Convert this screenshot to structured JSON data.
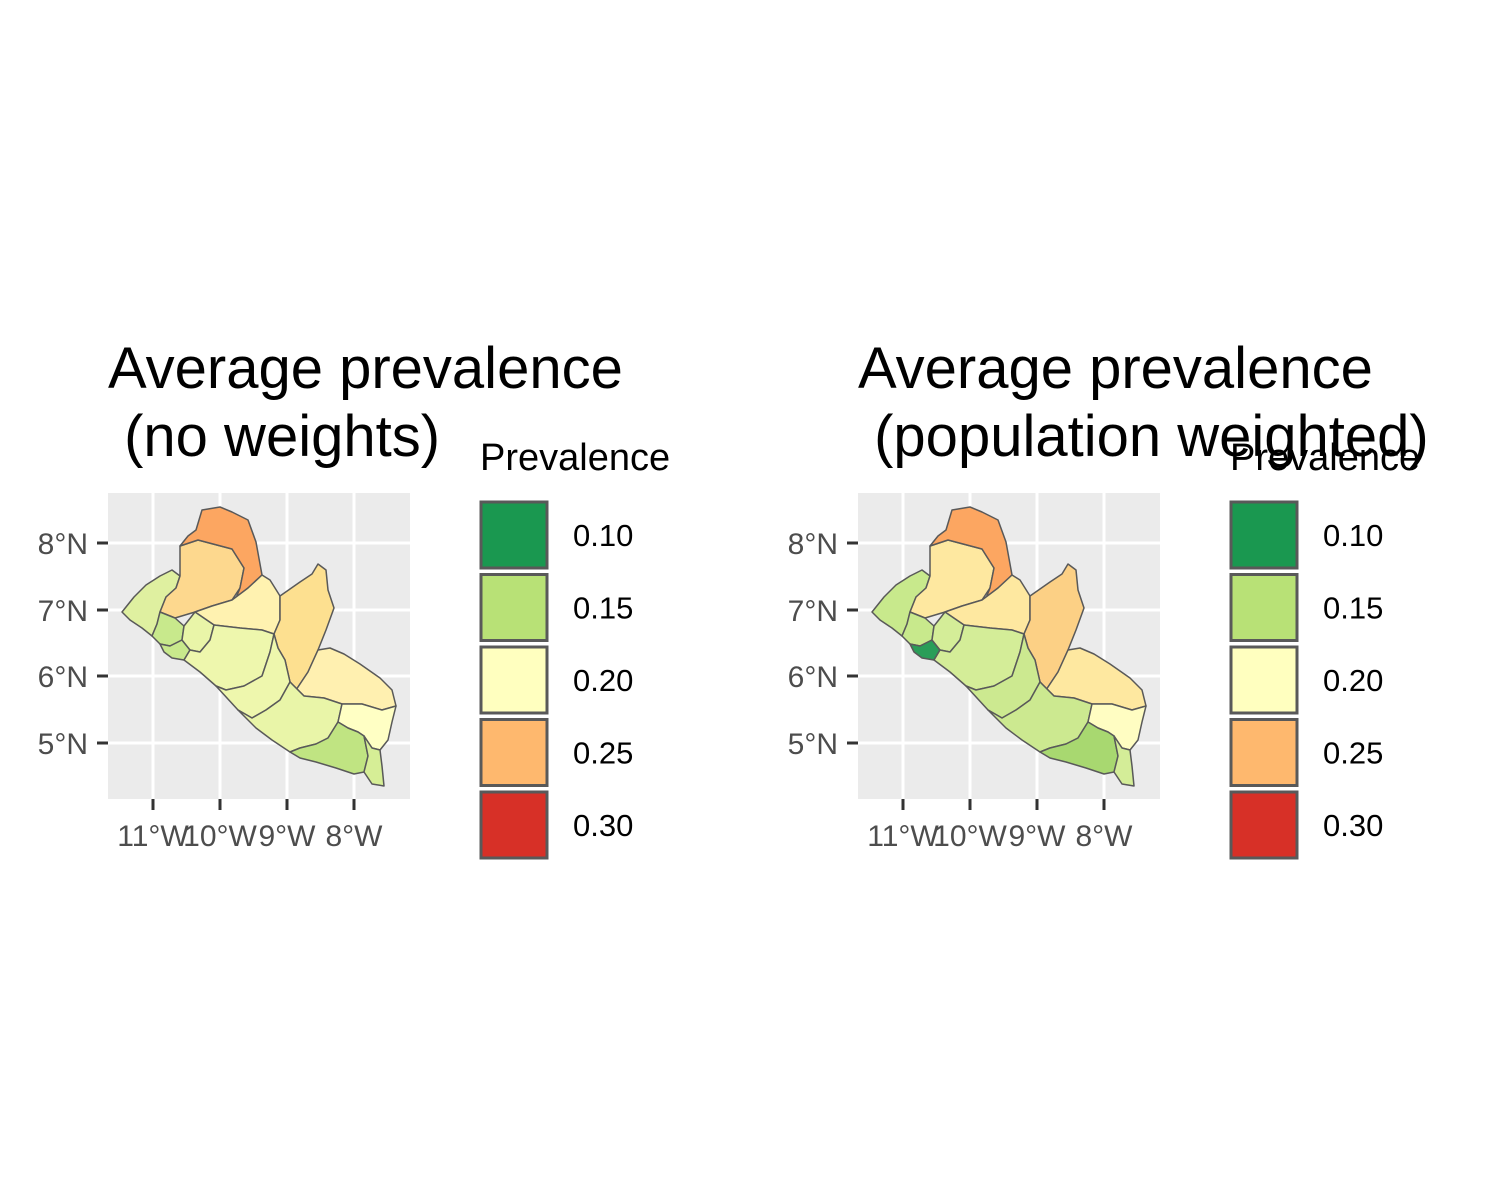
{
  "palette": {
    "panel_bg": "#ebebeb",
    "grid": "#ffffff",
    "border": "#595959",
    "tick": "#333333"
  },
  "legend_scale": [
    {
      "label": "0.10",
      "color": "#1a9850"
    },
    {
      "label": "0.15",
      "color": "#b8e176"
    },
    {
      "label": "0.20",
      "color": "#ffffbf"
    },
    {
      "label": "0.25",
      "color": "#feb86e"
    },
    {
      "label": "0.30",
      "color": "#d73027"
    }
  ],
  "panels": [
    {
      "title_line1": "Average prevalence",
      "title_line2": " (no weights)",
      "legend_title": "Prevalence",
      "lat_ticks": [
        "8°N",
        "7°N",
        "6°N",
        "5°N"
      ],
      "lon_ticks": [
        "11°W",
        "10°W",
        "9°W",
        "8°W"
      ],
      "regions": {
        "grand_cape_mount": {
          "value": 0.155,
          "color": "#dff0a0"
        },
        "gbarpolu": {
          "value": 0.225,
          "color": "#fdd88e"
        },
        "lofa": {
          "value": 0.255,
          "color": "#fca661"
        },
        "bong": {
          "value": 0.205,
          "color": "#fff2b0"
        },
        "nimba": {
          "value": 0.225,
          "color": "#fde090"
        },
        "bomi": {
          "value": 0.15,
          "color": "#c8e98c"
        },
        "montserrado": {
          "value": 0.15,
          "color": "#c8e98c"
        },
        "margibi": {
          "value": 0.17,
          "color": "#e9f5a8"
        },
        "grand_bassa": {
          "value": 0.175,
          "color": "#eef7ad"
        },
        "river_cess": {
          "value": 0.175,
          "color": "#eef7ad"
        },
        "grand_gedeh": {
          "value": 0.205,
          "color": "#fff0b0"
        },
        "sinoe": {
          "value": 0.17,
          "color": "#e9f5a8"
        },
        "river_gee": {
          "value": 0.195,
          "color": "#ffffc4"
        },
        "grand_kru": {
          "value": 0.145,
          "color": "#c0e482"
        },
        "maryland": {
          "value": 0.16,
          "color": "#d6ee96"
        }
      }
    },
    {
      "title_line1": "Average prevalence",
      "title_line2": " (population weighted)",
      "legend_title": "Prevalence",
      "lat_ticks": [
        "8°N",
        "7°N",
        "6°N",
        "5°N"
      ],
      "lon_ticks": [
        "11°W",
        "10°W",
        "9°W",
        "8°W"
      ],
      "regions": {
        "grand_cape_mount": {
          "value": 0.145,
          "color": "#c8e98c"
        },
        "gbarpolu": {
          "value": 0.21,
          "color": "#fee8a0"
        },
        "lofa": {
          "value": 0.255,
          "color": "#fca661"
        },
        "bong": {
          "value": 0.21,
          "color": "#fee8a0"
        },
        "nimba": {
          "value": 0.23,
          "color": "#fcd085"
        },
        "bomi": {
          "value": 0.145,
          "color": "#c8e98c"
        },
        "montserrado": {
          "value": 0.1,
          "color": "#2a9d58"
        },
        "margibi": {
          "value": 0.155,
          "color": "#d4ed98"
        },
        "grand_bassa": {
          "value": 0.16,
          "color": "#d4ed98"
        },
        "river_cess": {
          "value": 0.15,
          "color": "#cce990"
        },
        "grand_gedeh": {
          "value": 0.21,
          "color": "#fee8a0"
        },
        "sinoe": {
          "value": 0.15,
          "color": "#cce990"
        },
        "river_gee": {
          "value": 0.2,
          "color": "#fffdc2"
        },
        "grand_kru": {
          "value": 0.135,
          "color": "#a8d870"
        },
        "maryland": {
          "value": 0.155,
          "color": "#d4ed98"
        }
      }
    }
  ]
}
